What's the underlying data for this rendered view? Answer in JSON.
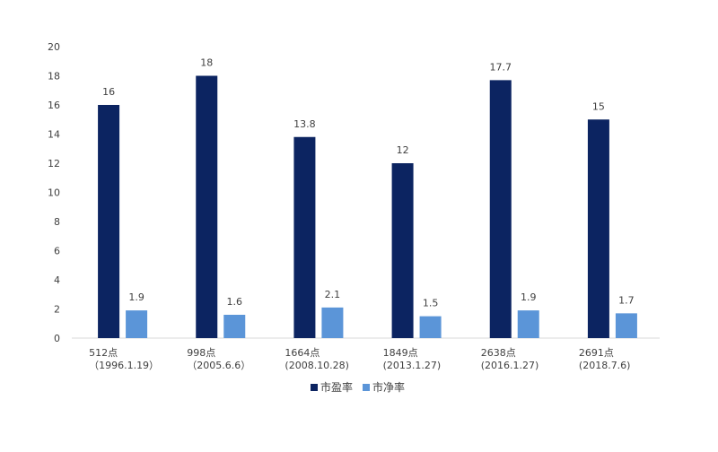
{
  "chart_data": {
    "type": "bar",
    "categories": [
      [
        "512点",
        "（1996.1.19）"
      ],
      [
        "998点",
        "（2005.6.6）"
      ],
      [
        "1664点",
        "(2008.10.28)"
      ],
      [
        "1849点",
        "(2013.1.27)"
      ],
      [
        "2638点",
        "(2016.1.27)"
      ],
      [
        "2691点",
        "(2018.7.6)"
      ]
    ],
    "series": [
      {
        "name": "市盈率",
        "values": [
          16,
          18,
          13.8,
          12,
          17.7,
          15
        ],
        "color": "#0c2461"
      },
      {
        "name": "市净率",
        "values": [
          1.9,
          1.6,
          2.1,
          1.5,
          1.9,
          1.7
        ],
        "color": "#5b95d8"
      }
    ],
    "ylim": [
      0,
      20
    ],
    "yticks": [
      0,
      2,
      4,
      6,
      8,
      10,
      12,
      14,
      16,
      18,
      20
    ],
    "grid": false,
    "legend": "bottom",
    "axis_color": "#d9d9d9"
  }
}
